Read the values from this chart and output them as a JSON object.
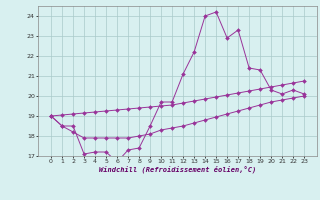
{
  "xlabel": "Windchill (Refroidissement éolien,°C)",
  "x": [
    0,
    1,
    2,
    3,
    4,
    5,
    6,
    7,
    8,
    9,
    10,
    11,
    12,
    13,
    14,
    15,
    16,
    17,
    18,
    19,
    20,
    21,
    22,
    23
  ],
  "y_main": [
    19.0,
    18.5,
    18.5,
    17.1,
    17.2,
    17.2,
    16.7,
    17.3,
    17.4,
    18.5,
    19.7,
    19.7,
    21.1,
    22.2,
    24.0,
    24.2,
    22.9,
    23.3,
    21.4,
    21.3,
    20.3,
    20.1,
    20.3,
    20.1
  ],
  "y_upper": [
    19.0,
    19.05,
    19.1,
    19.15,
    19.2,
    19.25,
    19.3,
    19.35,
    19.4,
    19.45,
    19.5,
    19.55,
    19.65,
    19.75,
    19.85,
    19.95,
    20.05,
    20.15,
    20.25,
    20.35,
    20.45,
    20.55,
    20.65,
    20.75
  ],
  "y_lower": [
    19.0,
    18.5,
    18.2,
    17.9,
    17.9,
    17.9,
    17.9,
    17.9,
    18.0,
    18.1,
    18.3,
    18.4,
    18.5,
    18.65,
    18.8,
    18.95,
    19.1,
    19.25,
    19.4,
    19.55,
    19.7,
    19.8,
    19.9,
    20.0
  ],
  "line_color": "#993399",
  "bg_color": "#d8f0f0",
  "grid_color": "#aacaca",
  "ylim": [
    17,
    24.5
  ],
  "yticks": [
    17,
    18,
    19,
    20,
    21,
    22,
    23,
    24
  ],
  "xticks": [
    0,
    1,
    2,
    3,
    4,
    5,
    6,
    7,
    8,
    9,
    10,
    11,
    12,
    13,
    14,
    15,
    16,
    17,
    18,
    19,
    20,
    21,
    22,
    23
  ]
}
